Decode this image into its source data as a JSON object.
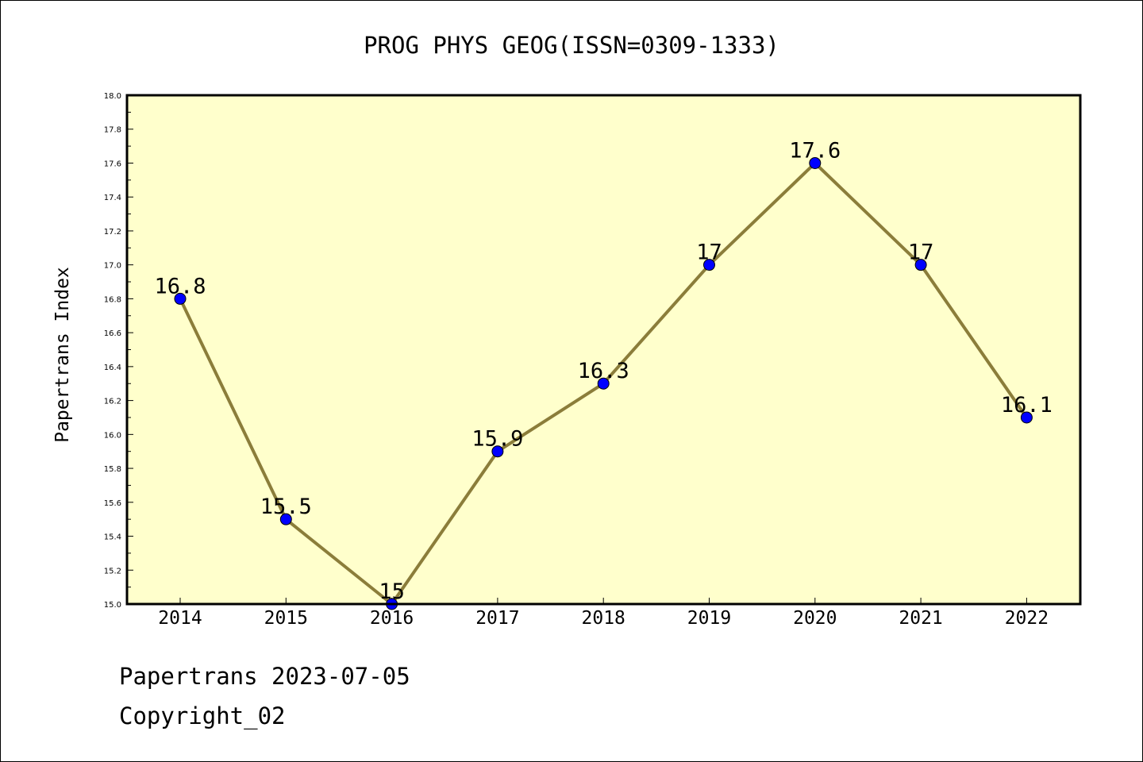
{
  "chart_data": {
    "type": "line",
    "title": "PROG PHYS GEOG(ISSN=0309-1333)",
    "xlabel": "",
    "ylabel": "Papertrans Index",
    "categories": [
      "2014",
      "2015",
      "2016",
      "2017",
      "2018",
      "2019",
      "2020",
      "2021",
      "2022"
    ],
    "values": [
      16.8,
      15.5,
      15,
      15.9,
      16.3,
      17,
      17.6,
      17,
      16.1
    ],
    "value_labels": [
      "16.8",
      "15.5",
      "15",
      "15.9",
      "16.3",
      "17",
      "17.6",
      "17",
      "16.1"
    ],
    "ylim": [
      15.0,
      18.0
    ],
    "yticks": [
      "15.0",
      "15.2",
      "15.4",
      "15.6",
      "15.8",
      "16.0",
      "16.2",
      "16.4",
      "16.6",
      "16.8",
      "17.0",
      "17.2",
      "17.4",
      "17.6",
      "17.8",
      "18.0"
    ],
    "grid": false,
    "legend": "none",
    "colors": {
      "plot_background": "#FFFFCC",
      "line": "#8B7D3A",
      "marker": "#0000FF"
    }
  },
  "footer": {
    "line1": "Papertrans 2023-07-05",
    "line2": "Copyright_02"
  }
}
